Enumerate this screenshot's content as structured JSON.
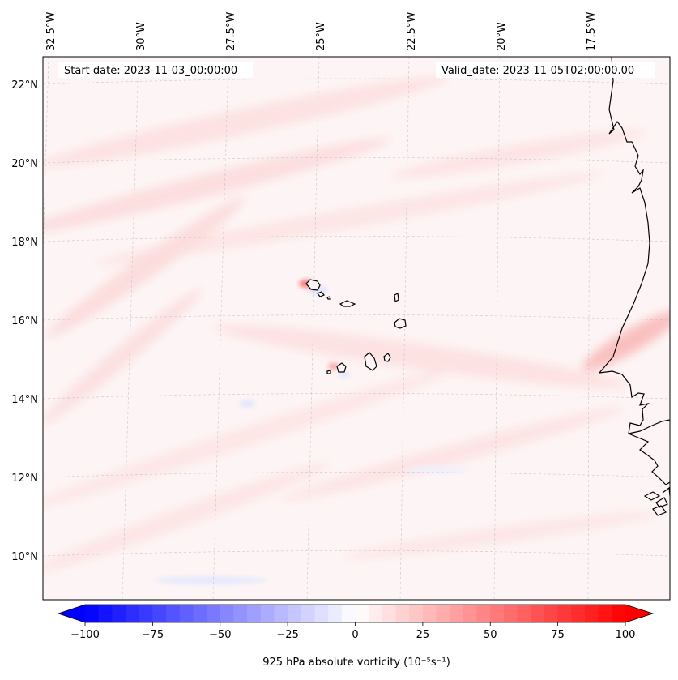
{
  "header": {
    "start_date": "Start date: 2023-11-03_00:00:00",
    "valid_date": "Valid_date: 2023-11-05T02:00:00.00"
  },
  "map": {
    "lon_labels": [
      "32.5°W",
      "30°W",
      "27.5°W",
      "25°W",
      "22.5°W",
      "20°W",
      "17.5°W"
    ],
    "lat_labels": [
      "22°N",
      "20°N",
      "18°N",
      "16°N",
      "14°N",
      "12°N",
      "10°N"
    ],
    "gridlines": true,
    "features": [
      "Cape Verde islands",
      "West African coastline (Mauritania, Senegal, Gambia, Guinea-Bissau)"
    ]
  },
  "colorbar": {
    "label": "925 hPa absolute vorticity (10⁻⁵s⁻¹)",
    "min": -100,
    "max": 100,
    "step": 5,
    "ticks": [
      "−100",
      "−75",
      "−50",
      "−25",
      "0",
      "25",
      "50",
      "75",
      "100"
    ],
    "colormap": "bwr",
    "extend": "both",
    "color_low": "#0000ff",
    "color_mid": "#ffffff",
    "color_high": "#ff0000"
  }
}
